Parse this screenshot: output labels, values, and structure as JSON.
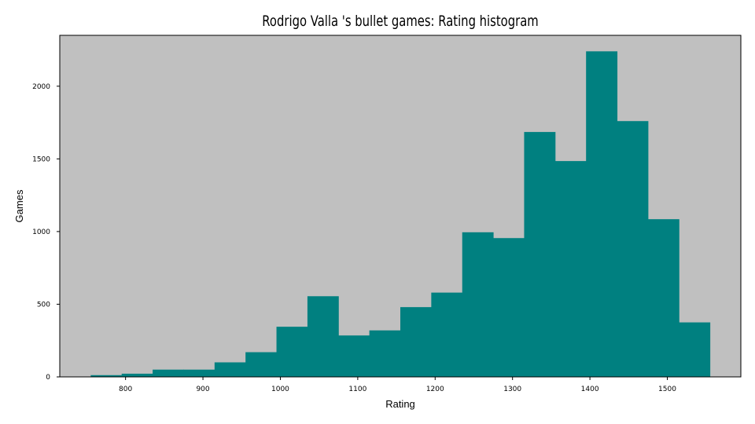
{
  "chart_data": {
    "type": "bar",
    "title": "Rodrigo Valla 's bullet games: Rating histogram",
    "xlabel": "Rating",
    "ylabel": "Games",
    "bin_edges": [
      755,
      795,
      835,
      875,
      915,
      955,
      995,
      1035,
      1075,
      1115,
      1155,
      1195,
      1235,
      1275,
      1315,
      1355,
      1395,
      1435,
      1475,
      1515,
      1555
    ],
    "values": [
      12,
      22,
      50,
      50,
      100,
      170,
      345,
      555,
      285,
      320,
      480,
      580,
      995,
      955,
      1685,
      1485,
      2240,
      1760,
      1085,
      375
    ],
    "xlim": [
      715,
      1595
    ],
    "ylim": [
      0,
      2350
    ],
    "x_ticks": [
      800,
      900,
      1000,
      1100,
      1200,
      1300,
      1400,
      1500
    ],
    "y_ticks": [
      0,
      500,
      1000,
      1500,
      2000
    ],
    "grid": false,
    "colors": {
      "bar": "#008080",
      "plot_background": "#c0c0c0",
      "axes": "#000000"
    }
  }
}
